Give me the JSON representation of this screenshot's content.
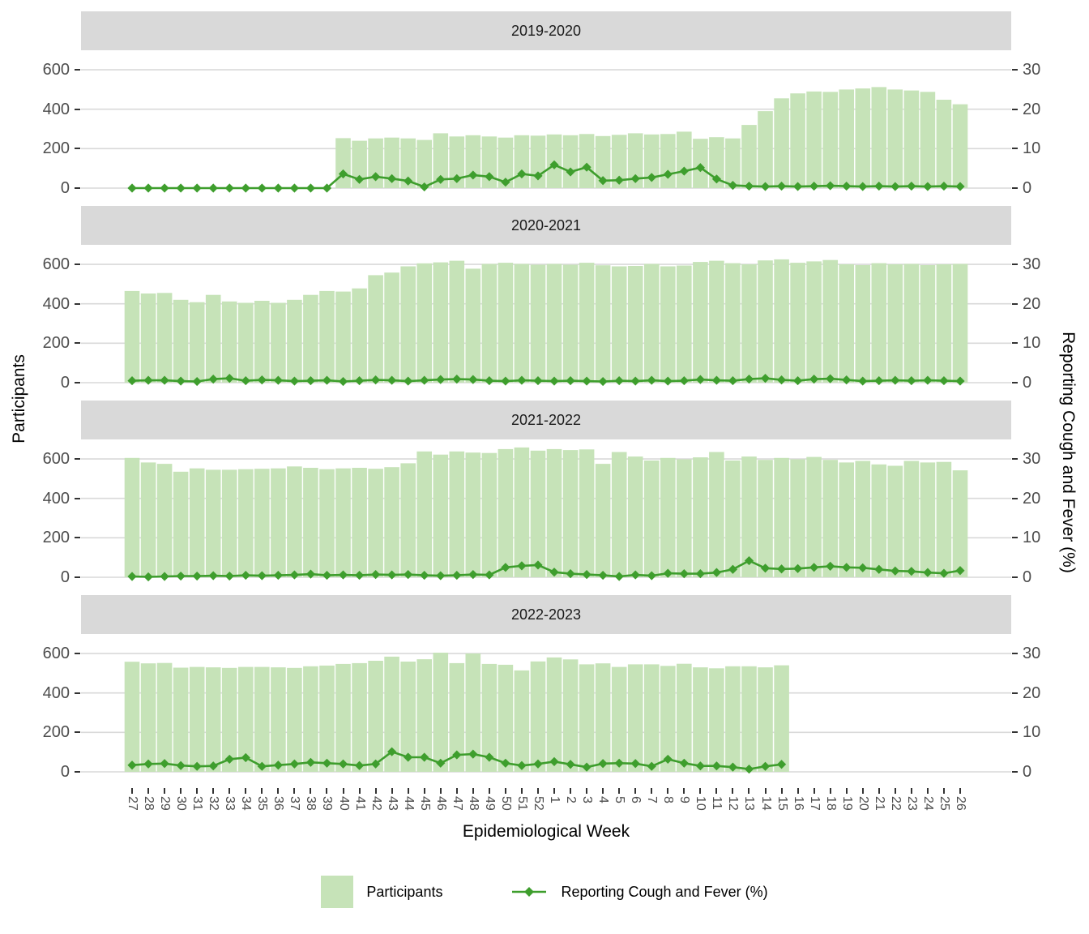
{
  "chart_data": {
    "type": "bar+line",
    "xlabel": "Epidemiological Week",
    "left_axis": {
      "label": "Participants",
      "ticks": [
        {
          "label": "600",
          "value": 600
        },
        {
          "label": "400",
          "value": 400
        },
        {
          "label": "200",
          "value": 200
        },
        {
          "label": "0",
          "value": 0
        }
      ],
      "ylim": [
        0,
        700
      ]
    },
    "right_axis": {
      "label": "Reporting Cough and Fever (%)",
      "ticks": [
        {
          "label": "30",
          "value": 600
        },
        {
          "label": "20",
          "value": 400
        },
        {
          "label": "10",
          "value": 200
        },
        {
          "label": "0",
          "value": 0
        }
      ],
      "ylim_percent": [
        0,
        35
      ]
    },
    "legend": [
      "Participants",
      "Reporting Cough and Fever (%)"
    ],
    "colors": {
      "bar_fill": "#c6e3b8",
      "line": "#3e9e2d",
      "strip_bg": "#d9d9d9",
      "grid": "#d9d9d9",
      "axis_text": "#4d4d4d"
    },
    "grid": "major-horizontal-only",
    "legend_position": "bottom",
    "categories": [
      "27",
      "28",
      "29",
      "30",
      "31",
      "32",
      "33",
      "34",
      "35",
      "36",
      "37",
      "38",
      "39",
      "40",
      "41",
      "42",
      "43",
      "44",
      "45",
      "46",
      "47",
      "48",
      "49",
      "50",
      "51",
      "52",
      "1",
      "2",
      "3",
      "4",
      "5",
      "6",
      "7",
      "8",
      "9",
      "10",
      "11",
      "12",
      "13",
      "14",
      "15",
      "16",
      "17",
      "18",
      "19",
      "20",
      "21",
      "22",
      "23",
      "24",
      "25",
      "26"
    ],
    "facets": [
      {
        "label": "2019-2020",
        "participants": [
          null,
          null,
          null,
          null,
          null,
          null,
          null,
          null,
          null,
          null,
          null,
          null,
          null,
          253,
          240,
          252,
          256,
          252,
          244,
          278,
          262,
          268,
          262,
          256,
          268,
          266,
          272,
          268,
          274,
          264,
          270,
          278,
          272,
          274,
          286,
          250,
          258,
          252,
          320,
          390,
          455,
          480,
          490,
          488,
          500,
          505,
          512,
          500,
          495,
          488,
          448,
          425
        ],
        "pct_cough_fever": [
          0,
          0,
          0,
          0,
          0,
          0,
          0,
          0,
          0,
          0,
          0,
          0,
          0,
          3.6,
          2.2,
          2.9,
          2.4,
          1.8,
          0.3,
          2.2,
          2.4,
          3.3,
          2.9,
          1.5,
          3.6,
          3.1,
          5.9,
          4.1,
          5.3,
          1.9,
          2.0,
          2.4,
          2.7,
          3.5,
          4.3,
          5.2,
          2.3,
          0.7,
          0.5,
          0.4,
          0.5,
          0.4,
          0.5,
          0.6,
          0.5,
          0.4,
          0.5,
          0.4,
          0.5,
          0.4,
          0.5,
          0.4
        ]
      },
      {
        "label": "2020-2021",
        "participants": [
          465,
          452,
          455,
          420,
          408,
          445,
          412,
          405,
          415,
          405,
          420,
          445,
          465,
          462,
          478,
          545,
          558,
          590,
          605,
          610,
          618,
          578,
          602,
          608,
          602,
          598,
          602,
          598,
          608,
          595,
          590,
          592,
          602,
          590,
          594,
          612,
          618,
          606,
          600,
          620,
          625,
          608,
          615,
          622,
          600,
          596,
          606,
          600,
          602,
          596,
          600,
          602
        ],
        "pct_cough_fever": [
          0.5,
          0.6,
          0.6,
          0.4,
          0.3,
          0.9,
          1.1,
          0.5,
          0.7,
          0.6,
          0.4,
          0.5,
          0.6,
          0.3,
          0.5,
          0.7,
          0.6,
          0.4,
          0.6,
          0.8,
          0.9,
          0.8,
          0.5,
          0.4,
          0.6,
          0.5,
          0.4,
          0.5,
          0.4,
          0.3,
          0.5,
          0.4,
          0.6,
          0.4,
          0.5,
          0.8,
          0.6,
          0.5,
          0.9,
          1.1,
          0.7,
          0.5,
          0.9,
          1.0,
          0.7,
          0.4,
          0.5,
          0.6,
          0.5,
          0.6,
          0.5,
          0.4
        ]
      },
      {
        "label": "2021-2022",
        "participants": [
          605,
          582,
          575,
          535,
          552,
          545,
          545,
          548,
          550,
          552,
          562,
          555,
          548,
          552,
          555,
          550,
          558,
          578,
          638,
          622,
          638,
          632,
          630,
          650,
          658,
          642,
          650,
          645,
          648,
          575,
          635,
          612,
          592,
          605,
          598,
          608,
          635,
          592,
          612,
          595,
          605,
          598,
          610,
          595,
          582,
          590,
          572,
          565,
          590,
          582,
          585,
          542
        ],
        "pct_cough_fever": [
          0.2,
          0.1,
          0.2,
          0.3,
          0.3,
          0.4,
          0.3,
          0.5,
          0.4,
          0.5,
          0.6,
          0.8,
          0.5,
          0.6,
          0.5,
          0.7,
          0.6,
          0.7,
          0.5,
          0.4,
          0.5,
          0.7,
          0.6,
          2.5,
          2.9,
          3.1,
          1.3,
          0.9,
          0.7,
          0.5,
          0.2,
          0.6,
          0.4,
          1.0,
          0.9,
          0.9,
          1.2,
          2.0,
          4.2,
          2.3,
          2.1,
          2.2,
          2.5,
          2.8,
          2.5,
          2.4,
          2.0,
          1.6,
          1.5,
          1.2,
          1.0,
          1.7
        ]
      },
      {
        "label": "2022-2023",
        "participants": [
          558,
          550,
          552,
          528,
          532,
          530,
          527,
          532,
          532,
          530,
          527,
          535,
          539,
          547,
          551,
          563,
          584,
          559,
          571,
          604,
          551,
          600,
          547,
          543,
          514,
          560,
          580,
          570,
          545,
          550,
          532,
          545,
          545,
          537,
          548,
          530,
          525,
          535,
          535,
          530,
          540,
          null,
          null,
          null,
          null,
          null,
          null,
          null,
          null,
          null,
          null,
          null
        ],
        "pct_cough_fever": [
          1.7,
          2.0,
          2.1,
          1.6,
          1.4,
          1.5,
          3.2,
          3.6,
          1.4,
          1.7,
          2.0,
          2.4,
          2.2,
          2.0,
          1.6,
          2.0,
          5.1,
          3.7,
          3.7,
          2.2,
          4.3,
          4.5,
          3.7,
          2.2,
          1.6,
          2.0,
          2.6,
          1.9,
          1.2,
          2.1,
          2.2,
          2.1,
          1.4,
          3.2,
          2.2,
          1.5,
          1.5,
          1.2,
          0.7,
          1.4,
          1.9,
          null,
          null,
          null,
          null,
          null,
          null,
          null,
          null,
          null,
          null,
          null
        ]
      }
    ]
  }
}
